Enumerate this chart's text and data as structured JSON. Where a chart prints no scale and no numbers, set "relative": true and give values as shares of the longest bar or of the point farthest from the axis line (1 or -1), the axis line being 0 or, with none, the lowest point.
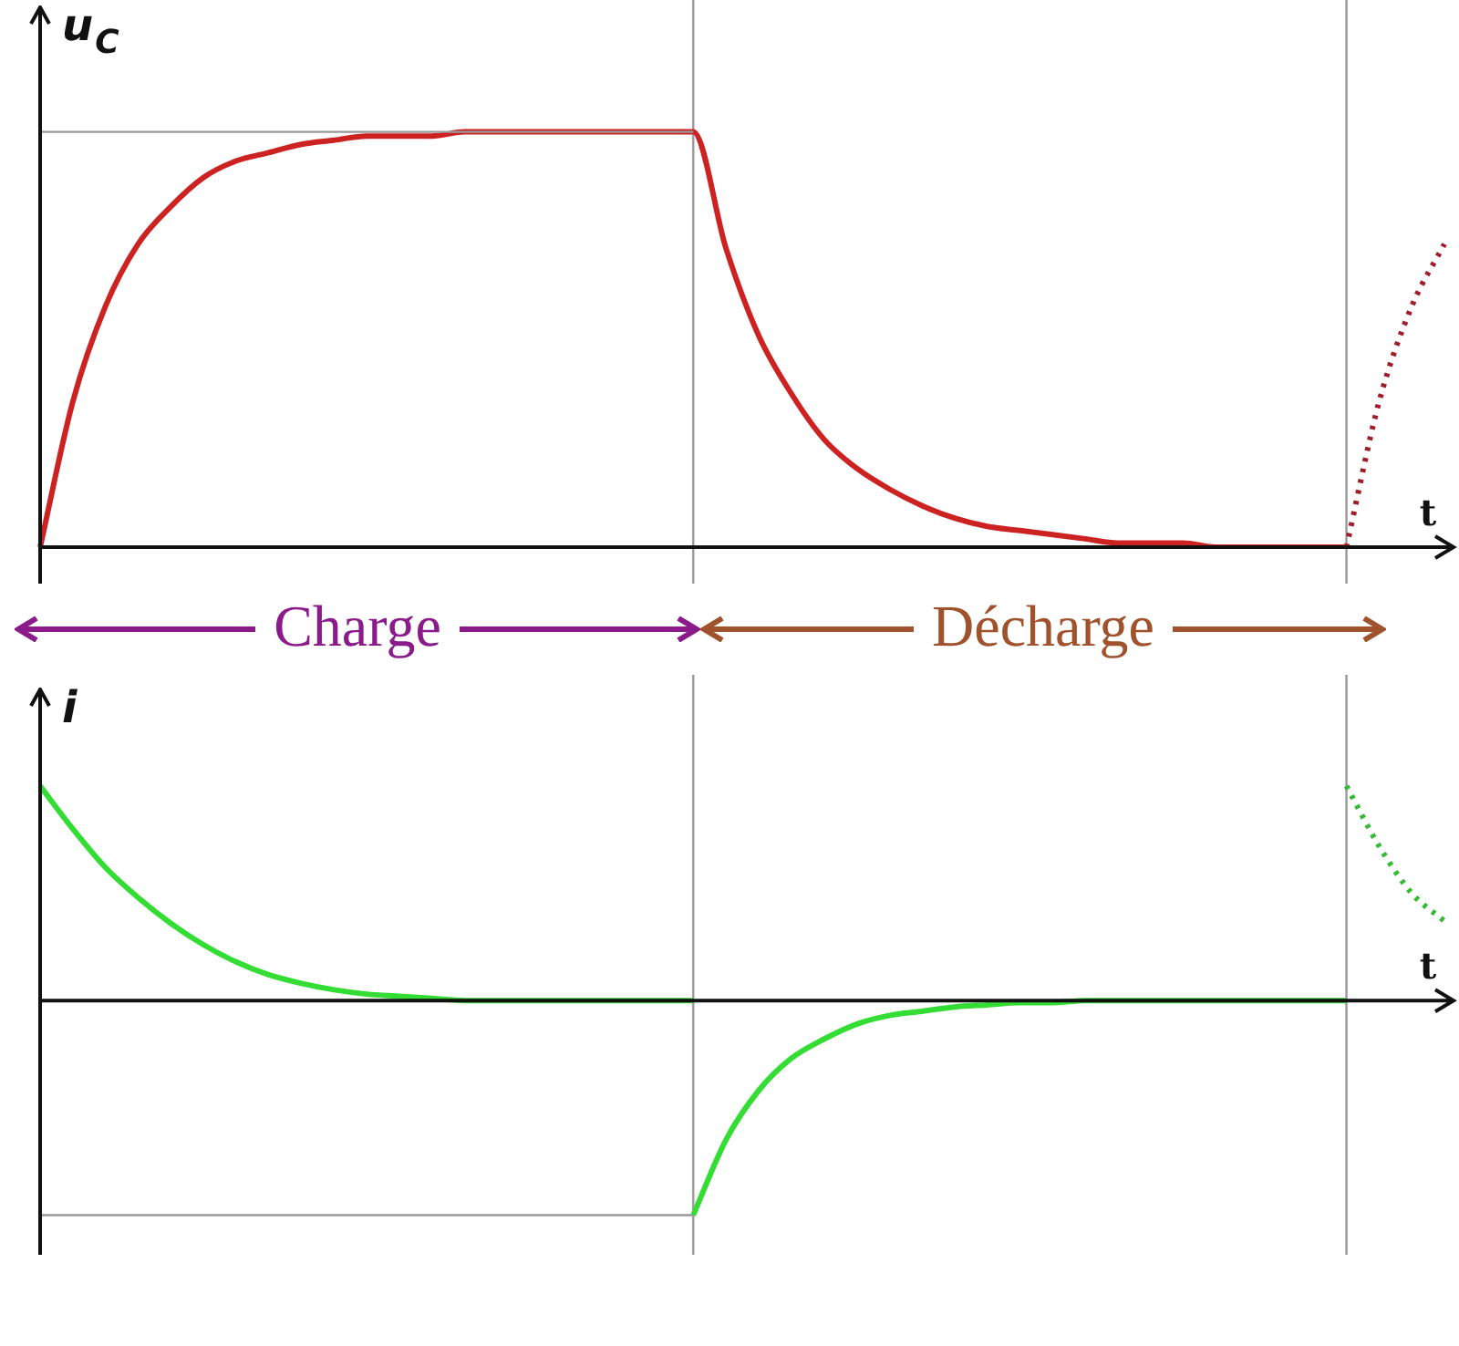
{
  "chart_data": [
    {
      "type": "line",
      "relative": true,
      "ylabel": "u$_{C}$",
      "xlabel": "t",
      "legend": false,
      "marker": "none",
      "categories": [
        null,
        null,
        null,
        null,
        null,
        null,
        null,
        null,
        null,
        null,
        null,
        null,
        null,
        null,
        null,
        null,
        null,
        null,
        null,
        null,
        null,
        null,
        null,
        null,
        null,
        null,
        null,
        null,
        null,
        null,
        null,
        null,
        null,
        null,
        null,
        null,
        null,
        null,
        null,
        null,
        null,
        null,
        null,
        null
      ],
      "series": [
        {
          "color": "#cc2222",
          "line_style": "solid",
          "values": [
            0,
            0.35,
            0.58,
            0.73,
            0.82,
            0.89,
            0.93,
            0.95,
            0.97,
            0.98,
            0.99,
            0.99,
            0.99,
            1,
            1,
            1,
            1,
            1,
            1,
            1,
            1,
            0.72,
            0.51,
            0.37,
            0.26,
            0.19,
            0.14,
            0.1,
            0.07,
            0.05,
            0.04,
            0.03,
            0.02,
            0.01,
            0.01,
            0.01,
            0,
            0,
            0,
            0,
            0,
            null,
            null,
            null
          ]
        },
        {
          "color": "#a01c28",
          "line_style": "dotted",
          "values": [
            null,
            null,
            null,
            null,
            null,
            null,
            null,
            null,
            null,
            null,
            null,
            null,
            null,
            null,
            null,
            null,
            null,
            null,
            null,
            null,
            null,
            null,
            null,
            null,
            null,
            null,
            null,
            null,
            null,
            null,
            null,
            null,
            null,
            null,
            null,
            null,
            null,
            null,
            null,
            null,
            0,
            0.35,
            0.58,
            0.73
          ]
        }
      ],
      "ref_lines": [
        {
          "axis": "y",
          "value": 1,
          "color": "#999999"
        }
      ]
    },
    {
      "type": "line",
      "relative": true,
      "ylabel": "i",
      "xlabel": "t",
      "legend": false,
      "marker": "none",
      "categories": [
        null,
        null,
        null,
        null,
        null,
        null,
        null,
        null,
        null,
        null,
        null,
        null,
        null,
        null,
        null,
        null,
        null,
        null,
        null,
        null,
        null,
        null,
        null,
        null,
        null,
        null,
        null,
        null,
        null,
        null,
        null,
        null,
        null,
        null,
        null,
        null,
        null,
        null,
        null,
        null,
        null,
        null,
        null,
        null
      ],
      "series": [
        {
          "color": "#33dd33",
          "line_style": "solid",
          "values": [
            1,
            0.8,
            0.62,
            0.48,
            0.36,
            0.26,
            0.18,
            0.12,
            0.08,
            0.05,
            0.03,
            0.02,
            0.01,
            0,
            0,
            0,
            0,
            0,
            0,
            0,
            0,
            null,
            null,
            null,
            null,
            null,
            null,
            null,
            null,
            null,
            null,
            null,
            null,
            null,
            null,
            null,
            null,
            null,
            null,
            null,
            null,
            null,
            null,
            null
          ]
        },
        {
          "color": "#33dd33",
          "line_style": "solid",
          "values": [
            null,
            null,
            null,
            null,
            null,
            null,
            null,
            null,
            null,
            null,
            null,
            null,
            null,
            null,
            null,
            null,
            null,
            null,
            null,
            null,
            -1,
            -0.65,
            -0.42,
            -0.27,
            -0.18,
            -0.11,
            -0.07,
            -0.05,
            -0.03,
            -0.02,
            -0.01,
            -0.01,
            0,
            0,
            0,
            0,
            0,
            0,
            0,
            0,
            0,
            null,
            null,
            null
          ]
        },
        {
          "color": "#33bb33",
          "line_style": "dotted",
          "values": [
            null,
            null,
            null,
            null,
            null,
            null,
            null,
            null,
            null,
            null,
            null,
            null,
            null,
            null,
            null,
            null,
            null,
            null,
            null,
            null,
            null,
            null,
            null,
            null,
            null,
            null,
            null,
            null,
            null,
            null,
            null,
            null,
            null,
            null,
            null,
            null,
            null,
            null,
            null,
            null,
            1,
            0.72,
            0.5,
            0.37
          ]
        }
      ],
      "ref_lines": [
        {
          "axis": "y",
          "value": -1,
          "color": "#999999"
        }
      ],
      "annotations": [
        "Charge",
        "Décharge"
      ]
    }
  ]
}
